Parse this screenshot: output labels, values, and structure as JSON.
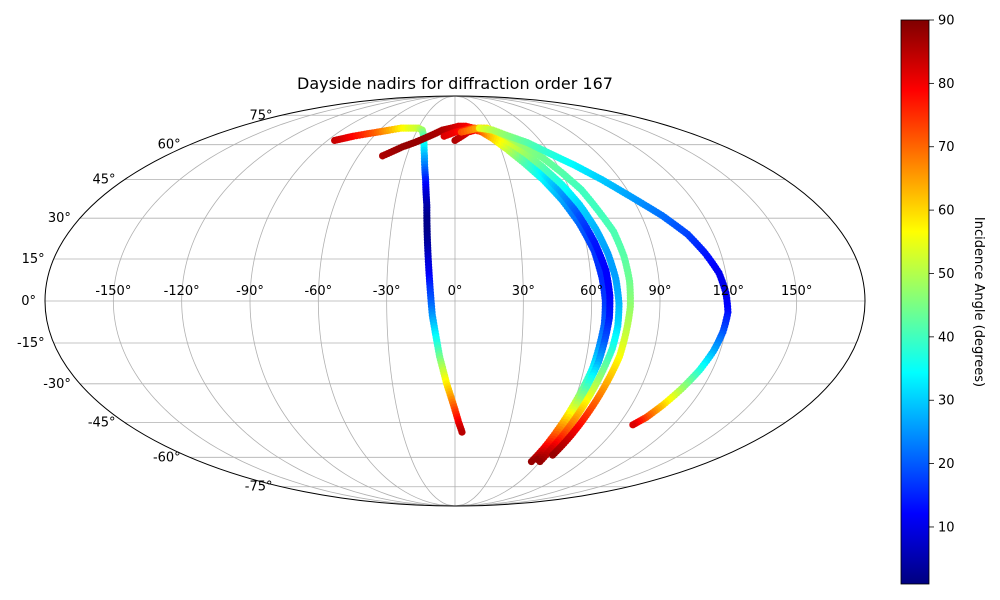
{
  "chart_data": {
    "type": "scatter",
    "projection": "mollweide",
    "title": "Dayside nadirs for diffraction order 167",
    "lon_ticks": [
      -150,
      -120,
      -90,
      -60,
      -30,
      0,
      30,
      60,
      90,
      120,
      150
    ],
    "lon_tick_labels": [
      "-150°",
      "-120°",
      "-90°",
      "-60°",
      "-30°",
      "0°",
      "30°",
      "60°",
      "90°",
      "120°",
      "150°"
    ],
    "lat_ticks": [
      -75,
      -60,
      -45,
      -30,
      -15,
      0,
      15,
      30,
      45,
      60,
      75
    ],
    "lat_tick_labels": [
      "-75°",
      "-60°",
      "-45°",
      "-30°",
      "-15°",
      "0°",
      "15°",
      "30°",
      "45°",
      "60°",
      "75°"
    ],
    "grid": true,
    "colorbar": {
      "label": "Incidence Angle (degrees)",
      "colormap": "jet",
      "range": [
        1,
        90
      ],
      "ticks": [
        10,
        20,
        30,
        40,
        50,
        60,
        70,
        80,
        90
      ],
      "tick_labels": [
        "10",
        "20",
        "30",
        "40",
        "50",
        "60",
        "70",
        "80",
        "90"
      ]
    },
    "series": [
      {
        "points": [
          [
            -85,
            62,
            84
          ],
          [
            -80,
            63,
            82
          ],
          [
            -75,
            64,
            79
          ],
          [
            -68,
            65,
            75
          ],
          [
            -60,
            66,
            70
          ],
          [
            -52,
            67,
            64
          ],
          [
            -44,
            68,
            58
          ],
          [
            -36,
            68,
            54
          ],
          [
            -30,
            68,
            52
          ],
          [
            -26,
            67,
            48
          ],
          [
            -23,
            64,
            42
          ],
          [
            -21,
            60,
            35
          ],
          [
            -19,
            55,
            28
          ],
          [
            -17.5,
            50,
            22
          ],
          [
            -16,
            45,
            15
          ],
          [
            -15,
            40,
            9
          ],
          [
            -14,
            35,
            5
          ],
          [
            -13.5,
            30,
            2
          ],
          [
            -13,
            25,
            2
          ],
          [
            -12.5,
            20,
            4
          ],
          [
            -12,
            15,
            8
          ],
          [
            -11.5,
            10,
            11
          ],
          [
            -11,
            5,
            16
          ],
          [
            -10.5,
            0,
            20
          ],
          [
            -10,
            -5,
            25
          ],
          [
            -9,
            -10,
            31
          ],
          [
            -8,
            -15,
            37
          ],
          [
            -7,
            -20,
            44
          ],
          [
            -5.5,
            -25,
            51
          ],
          [
            -4,
            -30,
            58
          ],
          [
            -2,
            -35,
            65
          ],
          [
            0,
            -40,
            73
          ],
          [
            2,
            -45,
            80
          ],
          [
            4,
            -49,
            85
          ]
        ]
      },
      {
        "points": [
          [
            -45,
            55,
            86
          ],
          [
            -40,
            57,
            87
          ],
          [
            -35,
            59,
            88
          ],
          [
            -28,
            61,
            88
          ],
          [
            -22,
            63,
            88
          ],
          [
            -16,
            65,
            87
          ],
          [
            -10,
            67,
            86
          ],
          [
            -3,
            68,
            84
          ],
          [
            3,
            69,
            82
          ],
          [
            9,
            69,
            80
          ],
          [
            15,
            68,
            76
          ],
          [
            21,
            66,
            70
          ],
          [
            27,
            63,
            62
          ],
          [
            34,
            58,
            52
          ],
          [
            41,
            52,
            42
          ],
          [
            48,
            45,
            34
          ],
          [
            54,
            37,
            27
          ],
          [
            59,
            28,
            21
          ],
          [
            63,
            18,
            17
          ],
          [
            65,
            8,
            16
          ],
          [
            66,
            0,
            17
          ],
          [
            66,
            -8,
            20
          ],
          [
            65,
            -16,
            25
          ],
          [
            64,
            -24,
            33
          ],
          [
            62,
            -32,
            43
          ],
          [
            60,
            -40,
            55
          ],
          [
            58,
            -48,
            68
          ],
          [
            56,
            -56,
            80
          ],
          [
            54,
            -62,
            88
          ]
        ]
      },
      {
        "points": [
          [
            0,
            62,
            86
          ],
          [
            5,
            64,
            84
          ],
          [
            10,
            66,
            82
          ],
          [
            16,
            67,
            78
          ],
          [
            22,
            66,
            70
          ],
          [
            28,
            64,
            62
          ],
          [
            35,
            60,
            54
          ],
          [
            42,
            55,
            44
          ],
          [
            49,
            48,
            34
          ],
          [
            55,
            40,
            26
          ],
          [
            60,
            31,
            19
          ],
          [
            64,
            21,
            14
          ],
          [
            67,
            11,
            12
          ],
          [
            68,
            2,
            12
          ],
          [
            68,
            -6,
            14
          ],
          [
            67,
            -14,
            19
          ],
          [
            66,
            -22,
            27
          ],
          [
            64,
            -30,
            38
          ],
          [
            62,
            -38,
            50
          ],
          [
            60,
            -46,
            64
          ],
          [
            58,
            -54,
            77
          ],
          [
            57,
            -61,
            88
          ]
        ]
      },
      {
        "points": [
          [
            -8,
            64,
            82
          ],
          [
            0,
            66,
            80
          ],
          [
            8,
            67,
            76
          ],
          [
            16,
            68,
            70
          ],
          [
            24,
            67,
            66
          ],
          [
            31,
            65,
            60
          ],
          [
            38,
            61,
            54
          ],
          [
            45,
            56,
            48
          ],
          [
            51,
            50,
            42
          ],
          [
            57,
            43,
            36
          ],
          [
            62,
            35,
            31
          ],
          [
            66,
            26,
            28
          ],
          [
            69,
            17,
            26
          ],
          [
            71,
            8,
            26
          ],
          [
            72,
            -1,
            28
          ],
          [
            72,
            -9,
            31
          ],
          [
            71,
            -17,
            37
          ],
          [
            69,
            -25,
            44
          ],
          [
            67,
            -33,
            52
          ],
          [
            65,
            -41,
            62
          ],
          [
            63,
            -49,
            72
          ],
          [
            61,
            -56,
            82
          ],
          [
            60,
            -62,
            88
          ]
        ]
      },
      {
        "points": [
          [
            5,
            66,
            72
          ],
          [
            12,
            67,
            68
          ],
          [
            19,
            68,
            64
          ],
          [
            26,
            68,
            58
          ],
          [
            33,
            66,
            54
          ],
          [
            40,
            63,
            50
          ],
          [
            47,
            59,
            47
          ],
          [
            54,
            54,
            44
          ],
          [
            60,
            48,
            42
          ],
          [
            66,
            41,
            40
          ],
          [
            70,
            33,
            40
          ],
          [
            74,
            25,
            41
          ],
          [
            76,
            16,
            42
          ],
          [
            77,
            7,
            44
          ],
          [
            77,
            -2,
            47
          ],
          [
            76,
            -11,
            51
          ],
          [
            75,
            -20,
            56
          ],
          [
            73,
            -28,
            62
          ],
          [
            71,
            -36,
            69
          ],
          [
            69,
            -44,
            76
          ],
          [
            67,
            -52,
            83
          ],
          [
            65,
            -59,
            88
          ]
        ]
      },
      {
        "points": [
          [
            20,
            68,
            55
          ],
          [
            30,
            67,
            50
          ],
          [
            40,
            64,
            46
          ],
          [
            50,
            61,
            42
          ],
          [
            60,
            56,
            38
          ],
          [
            70,
            51,
            34
          ],
          [
            80,
            45,
            30
          ],
          [
            90,
            38,
            26
          ],
          [
            100,
            31,
            22
          ],
          [
            108,
            24,
            18
          ],
          [
            113,
            17,
            14
          ],
          [
            117,
            10,
            11
          ],
          [
            119,
            3,
            10
          ],
          [
            120,
            -4,
            13
          ],
          [
            119,
            -11,
            19
          ],
          [
            117,
            -18,
            27
          ],
          [
            114,
            -25,
            37
          ],
          [
            110,
            -32,
            48
          ],
          [
            106,
            -38,
            60
          ],
          [
            102,
            -43,
            72
          ],
          [
            98,
            -46,
            82
          ]
        ]
      }
    ]
  }
}
